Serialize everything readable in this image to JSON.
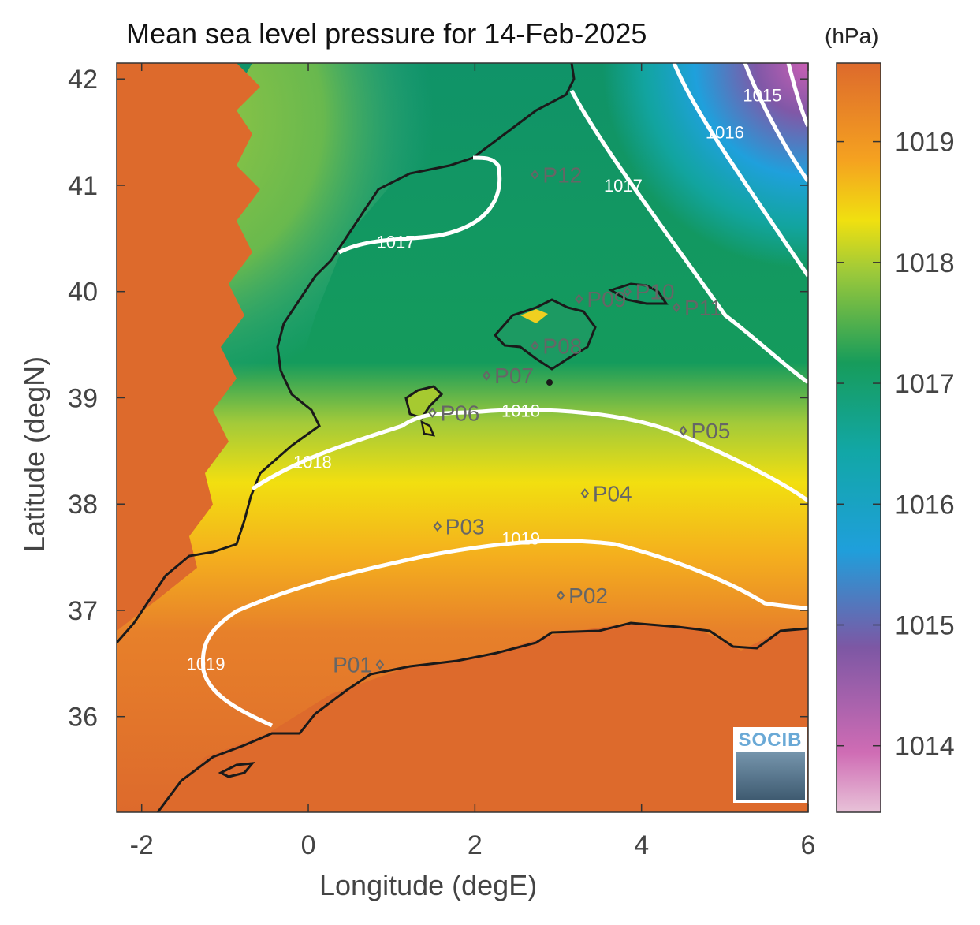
{
  "title": "Mean sea level pressure for 14-Feb-2025",
  "xlabel": "Longitude (degE)",
  "ylabel": "Latitude (degN)",
  "colorbar": {
    "unit": "(hPa)",
    "ticks": [
      1014,
      1015,
      1016,
      1017,
      1018,
      1019
    ],
    "range": [
      1013.45,
      1019.65
    ]
  },
  "chart_data": {
    "type": "heatmap",
    "title": "Mean sea level pressure for 14-Feb-2025",
    "xlabel": "Longitude (degE)",
    "ylabel": "Latitude (degN)",
    "xlim": [
      -2.3,
      6.0
    ],
    "ylim": [
      35.1,
      42.15
    ],
    "xticks": [
      -2,
      0,
      2,
      4,
      6
    ],
    "yticks": [
      36,
      37,
      38,
      39,
      40,
      41,
      42
    ],
    "xtick_labels": [
      "-2",
      "0",
      "2",
      "4",
      "6"
    ],
    "ytick_labels": [
      "36",
      "37",
      "38",
      "39",
      "40",
      "41",
      "42"
    ],
    "contour_labels": [
      {
        "label": "1015",
        "lon": 5.45,
        "lat": 41.85
      },
      {
        "label": "1016",
        "lon": 5.0,
        "lat": 41.5
      },
      {
        "label": "1017",
        "lon": 3.78,
        "lat": 41.0
      },
      {
        "label": "1017",
        "lon": 1.05,
        "lat": 40.47
      },
      {
        "label": "1018",
        "lon": 2.55,
        "lat": 38.88
      },
      {
        "label": "1018",
        "lon": 0.05,
        "lat": 38.4
      },
      {
        "label": "1019",
        "lon": 2.55,
        "lat": 37.68
      },
      {
        "label": "1019",
        "lon": -1.23,
        "lat": 36.5
      }
    ],
    "stations": [
      {
        "name": "P01",
        "lon": 0.86,
        "lat": 36.49
      },
      {
        "name": "P02",
        "lon": 3.03,
        "lat": 37.14
      },
      {
        "name": "P03",
        "lon": 1.55,
        "lat": 37.79
      },
      {
        "name": "P04",
        "lon": 3.32,
        "lat": 38.1
      },
      {
        "name": "P05",
        "lon": 4.5,
        "lat": 38.69
      },
      {
        "name": "P06",
        "lon": 1.49,
        "lat": 38.86
      },
      {
        "name": "P07",
        "lon": 2.14,
        "lat": 39.21
      },
      {
        "name": "P08",
        "lon": 2.72,
        "lat": 39.49
      },
      {
        "name": "P09",
        "lon": 3.25,
        "lat": 39.93
      },
      {
        "name": "P10",
        "lon": 3.83,
        "lat": 40.0
      },
      {
        "name": "P11",
        "lon": 4.42,
        "lat": 39.85
      },
      {
        "name": "P12",
        "lon": 2.72,
        "lat": 41.1
      }
    ]
  },
  "colors": {
    "coast": "#1a1a1a",
    "contour": "#ffffff",
    "station": "#666666",
    "land": "#dd6a2c"
  },
  "logo": {
    "text": "SOCIB"
  }
}
